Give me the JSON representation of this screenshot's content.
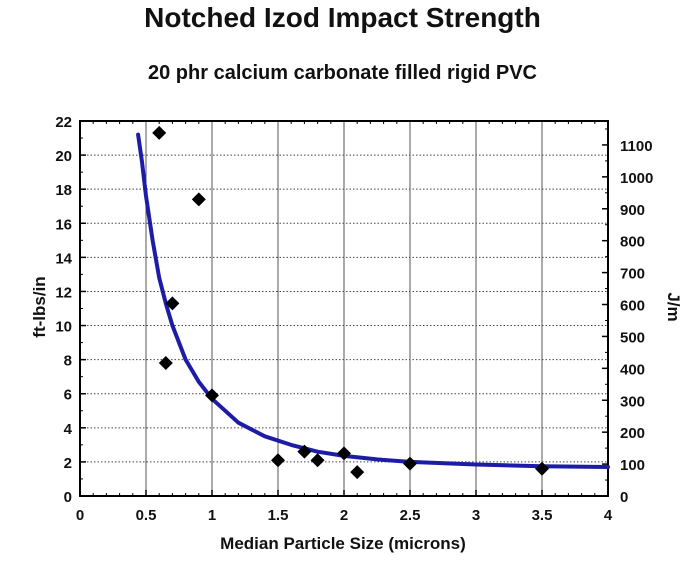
{
  "chart_data": {
    "type": "scatter",
    "title": "Notched Izod Impact Strength",
    "subtitle": "20 phr calcium carbonate filled rigid PVC",
    "xlabel": "Median Particle Size  (microns)",
    "ylabel": "ft-lbs/in",
    "y2label": "J/m",
    "xlim": [
      0,
      4
    ],
    "ylim": [
      0,
      22
    ],
    "y2lim": [
      0,
      1175
    ],
    "grid": true,
    "x_ticks": [
      0,
      0.5,
      1,
      1.5,
      2,
      2.5,
      3,
      3.5,
      4
    ],
    "x_tick_labels": [
      "0",
      "0.5",
      "1",
      "1.5",
      "2",
      "2.5",
      "3",
      "3.5",
      "4"
    ],
    "y_ticks": [
      0,
      2,
      4,
      6,
      8,
      10,
      12,
      14,
      16,
      18,
      20,
      22
    ],
    "y_tick_labels": [
      "0",
      "2",
      "4",
      "6",
      "8",
      "10",
      "12",
      "14",
      "16",
      "18",
      "20",
      "22"
    ],
    "y2_ticks": [
      0,
      100,
      200,
      300,
      400,
      500,
      600,
      700,
      800,
      900,
      1000,
      1100
    ],
    "y2_tick_labels": [
      "0",
      "100",
      "200",
      "300",
      "400",
      "500",
      "600",
      "700",
      "800",
      "900",
      "1000",
      "1100"
    ],
    "series": [
      {
        "type": "scatter",
        "marker": "diamond",
        "color": "#000000",
        "points": [
          {
            "x": 0.6,
            "y": 21.3
          },
          {
            "x": 0.65,
            "y": 7.8
          },
          {
            "x": 0.7,
            "y": 11.3
          },
          {
            "x": 0.9,
            "y": 17.4
          },
          {
            "x": 1.0,
            "y": 5.9
          },
          {
            "x": 1.5,
            "y": 2.1
          },
          {
            "x": 1.7,
            "y": 2.6
          },
          {
            "x": 1.8,
            "y": 2.1
          },
          {
            "x": 2.0,
            "y": 2.5
          },
          {
            "x": 2.1,
            "y": 1.4
          },
          {
            "x": 2.5,
            "y": 1.9
          },
          {
            "x": 3.5,
            "y": 1.6
          }
        ]
      },
      {
        "type": "line",
        "color": "#1c1ca6",
        "points": [
          {
            "x": 0.44,
            "y": 21.2
          },
          {
            "x": 0.47,
            "y": 19.6
          },
          {
            "x": 0.5,
            "y": 17.6
          },
          {
            "x": 0.55,
            "y": 15.0
          },
          {
            "x": 0.6,
            "y": 12.8
          },
          {
            "x": 0.65,
            "y": 11.3
          },
          {
            "x": 0.7,
            "y": 10.0
          },
          {
            "x": 0.8,
            "y": 8.0
          },
          {
            "x": 0.9,
            "y": 6.7
          },
          {
            "x": 1.0,
            "y": 5.7
          },
          {
            "x": 1.2,
            "y": 4.3
          },
          {
            "x": 1.4,
            "y": 3.5
          },
          {
            "x": 1.6,
            "y": 3.0
          },
          {
            "x": 1.8,
            "y": 2.6
          },
          {
            "x": 2.0,
            "y": 2.35
          },
          {
            "x": 2.25,
            "y": 2.15
          },
          {
            "x": 2.5,
            "y": 2.0
          },
          {
            "x": 3.0,
            "y": 1.85
          },
          {
            "x": 3.5,
            "y": 1.75
          },
          {
            "x": 4.0,
            "y": 1.7
          }
        ]
      }
    ]
  }
}
